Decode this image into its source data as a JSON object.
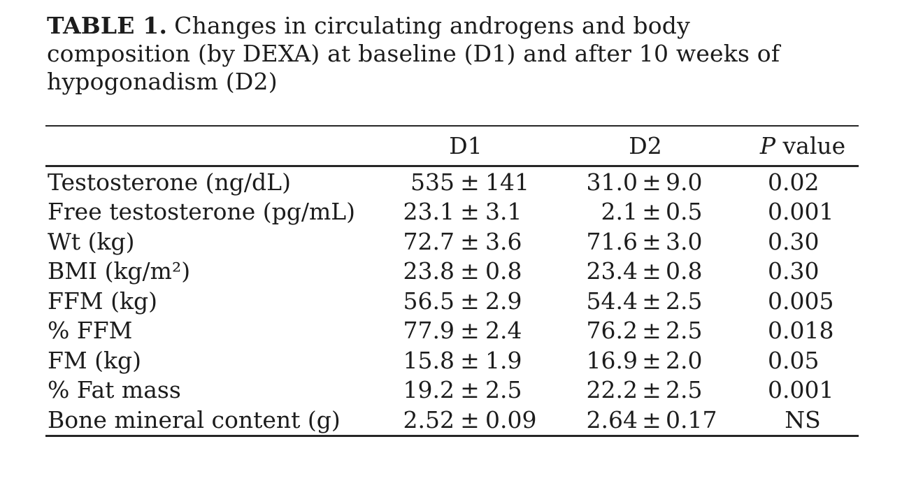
{
  "colors": {
    "background": "#ffffff",
    "text": "#1c1c1c",
    "rule": "#262626"
  },
  "caption": {
    "label": "TABLE 1.",
    "lines": [
      "Changes in circulating androgens and body",
      "composition (by DEXA) at baseline (D1) and after 10 weeks of",
      "hypogonadism (D2)"
    ]
  },
  "table": {
    "headers": {
      "stub": "",
      "d1": "D1",
      "d2": "D2",
      "p_italic": "P",
      "p_rest": " value"
    },
    "rows": [
      {
        "label": "Testosterone (ng/dL)",
        "d1": "535 ± 141",
        "d2": "31.0 ± 9.0",
        "p": "0.02"
      },
      {
        "label": "Free testosterone (pg/mL)",
        "d1": "23.1 ± 3.1",
        "d2": "2.1 ± 0.5",
        "p": "0.001"
      },
      {
        "label": "Wt (kg)",
        "d1": "72.7 ± 3.6",
        "d2": "71.6 ± 3.0",
        "p": "0.30"
      },
      {
        "label": "BMI (kg/m²)",
        "d1": "23.8 ± 0.8",
        "d2": "23.4 ± 0.8",
        "p": "0.30"
      },
      {
        "label": "FFM (kg)",
        "d1": "56.5 ± 2.9",
        "d2": "54.4 ± 2.5",
        "p": "0.005"
      },
      {
        "label": "% FFM",
        "d1": "77.9 ± 2.4",
        "d2": "76.2 ± 2.5",
        "p": "0.018"
      },
      {
        "label": "FM (kg)",
        "d1": "15.8 ± 1.9",
        "d2": "16.9 ± 2.0",
        "p": "0.05"
      },
      {
        "label": "% Fat mass",
        "d1": "19.2 ± 2.5",
        "d2": "22.2 ± 2.5",
        "p": "0.001"
      },
      {
        "label": "Bone mineral content (g)",
        "d1": "2.52 ± 0.09",
        "d2": "2.64 ± 0.17",
        "p": "NS"
      }
    ]
  },
  "chart_data": {
    "type": "table",
    "title": "TABLE 1. Changes in circulating androgens and body composition (by DEXA) at baseline (D1) and after 10 weeks of hypogonadism (D2)",
    "columns": [
      "",
      "D1",
      "D2",
      "P value"
    ],
    "rows": [
      [
        "Testosterone (ng/dL)",
        "535 ± 141",
        "31.0 ± 9.0",
        "0.02"
      ],
      [
        "Free testosterone (pg/mL)",
        "23.1 ± 3.1",
        "2.1 ± 0.5",
        "0.001"
      ],
      [
        "Wt (kg)",
        "72.7 ± 3.6",
        "71.6 ± 3.0",
        "0.30"
      ],
      [
        "BMI (kg/m²)",
        "23.8 ± 0.8",
        "23.4 ± 0.8",
        "0.30"
      ],
      [
        "FFM (kg)",
        "56.5 ± 2.9",
        "54.4 ± 2.5",
        "0.005"
      ],
      [
        "% FFM",
        "77.9 ± 2.4",
        "76.2 ± 2.5",
        "0.018"
      ],
      [
        "FM (kg)",
        "15.8 ± 1.9",
        "16.9 ± 2.0",
        "0.05"
      ],
      [
        "% Fat mass",
        "19.2 ± 2.5",
        "22.2 ± 2.5",
        "0.001"
      ],
      [
        "Bone mineral content (g)",
        "2.52 ± 0.09",
        "2.64 ± 0.17",
        "NS"
      ]
    ]
  }
}
